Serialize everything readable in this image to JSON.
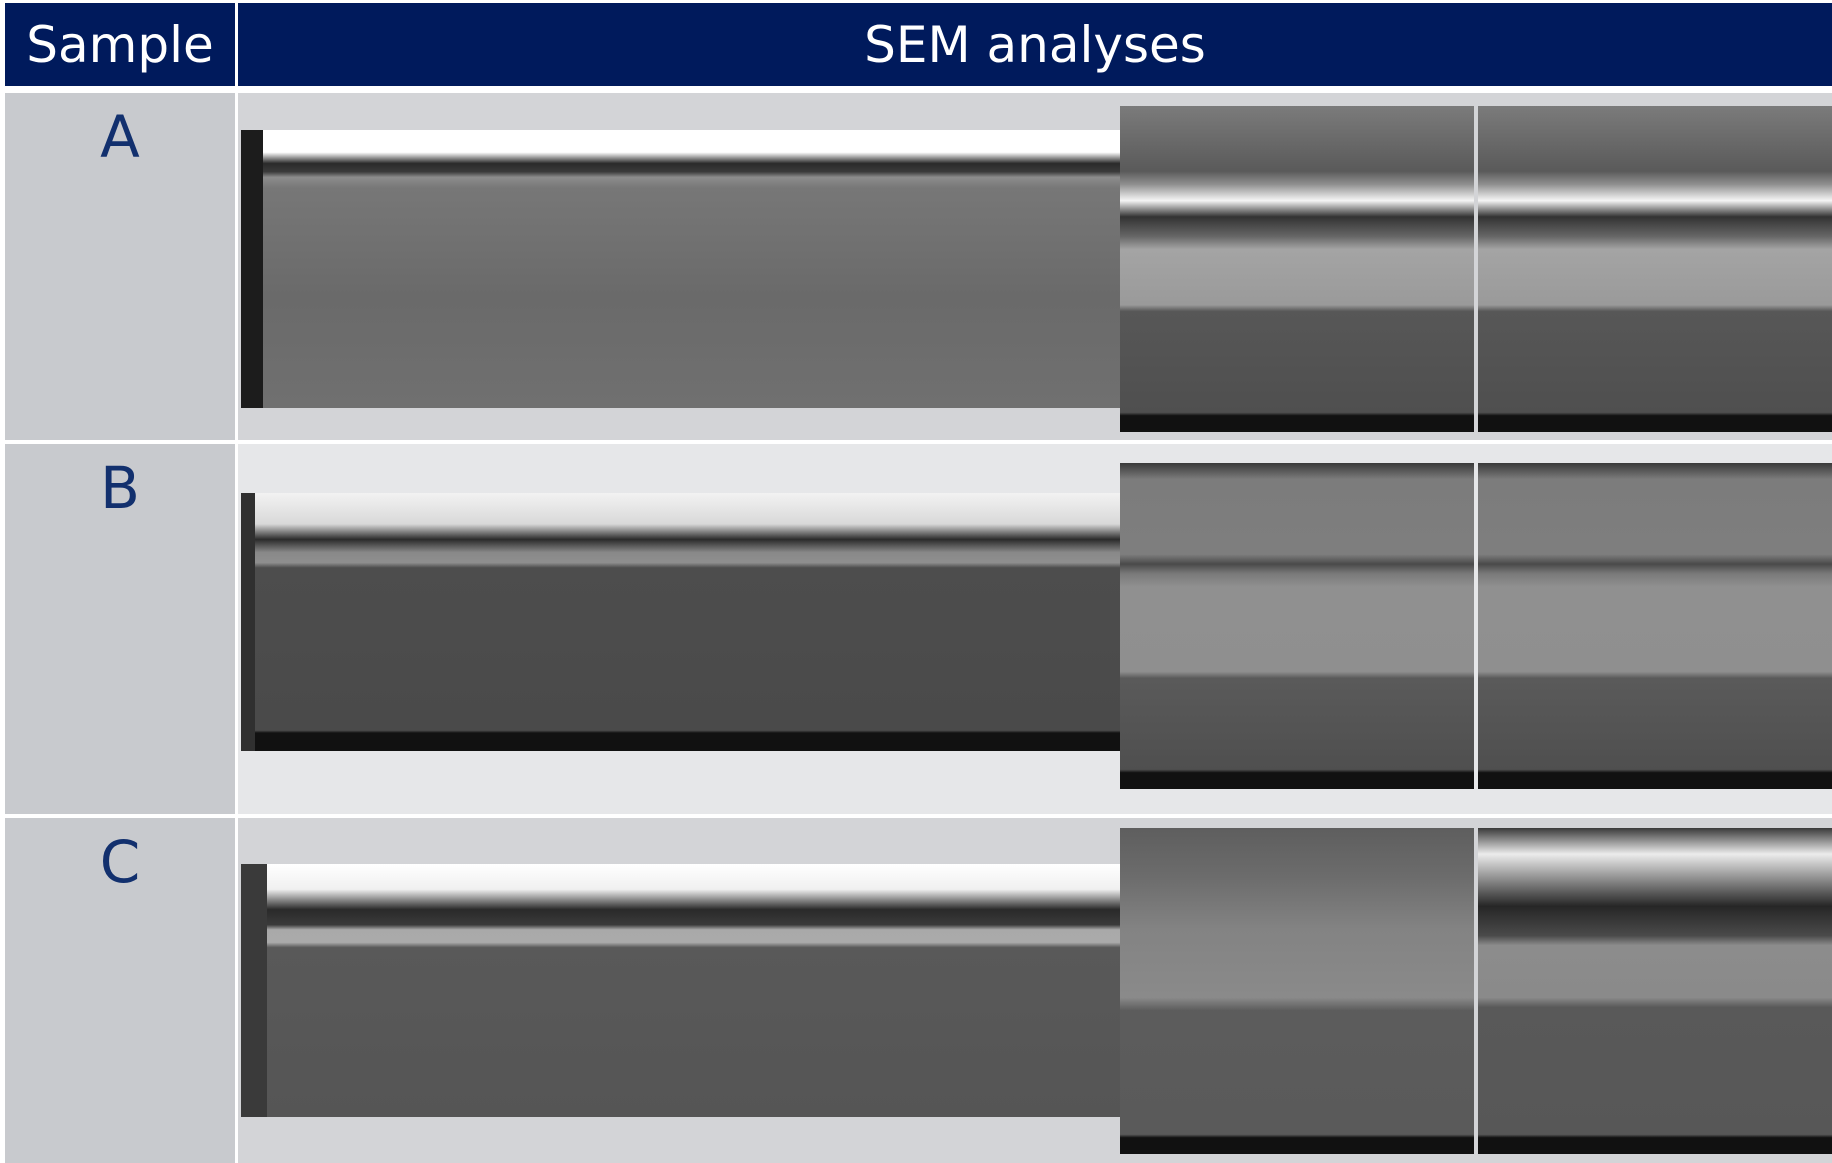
{
  "header": {
    "sample": "Sample",
    "analyses": "SEM analyses"
  },
  "rows": [
    {
      "sample": "A"
    },
    {
      "sample": "B"
    },
    {
      "sample": "C"
    }
  ]
}
